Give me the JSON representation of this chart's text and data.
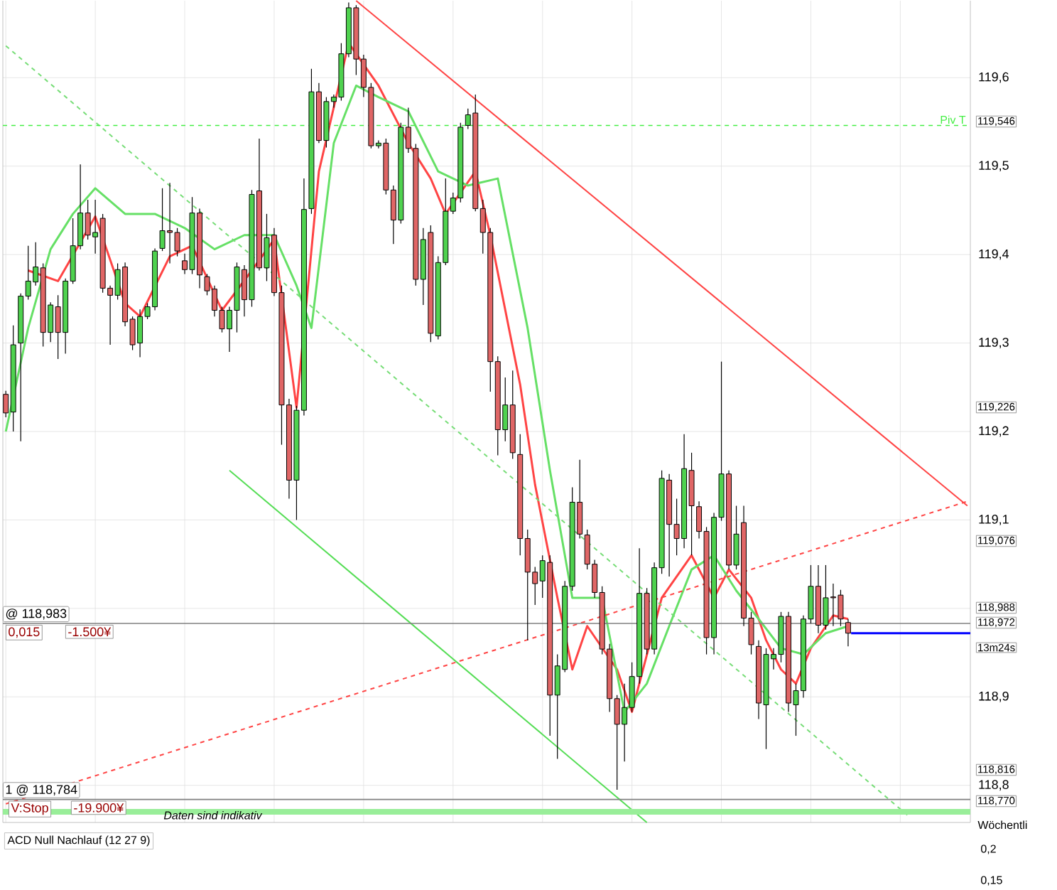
{
  "chart_data": [
    {
      "type": "candlestick",
      "categories": [
        null,
        null,
        null,
        null,
        null,
        null,
        null,
        null,
        null,
        null,
        null,
        null,
        null,
        null,
        null,
        null,
        null,
        null,
        null,
        null,
        null,
        null,
        null,
        null,
        null,
        null,
        null,
        null,
        null,
        null,
        null,
        null,
        null,
        null,
        null,
        null,
        null,
        null,
        null,
        null,
        null,
        null,
        null,
        null,
        null,
        null,
        null,
        null,
        null,
        null,
        null,
        null,
        null,
        null,
        null,
        null,
        null,
        null,
        null,
        null,
        null,
        null,
        null,
        null,
        null,
        null,
        null,
        null,
        null,
        null,
        null,
        null,
        null,
        null,
        null,
        null,
        null,
        null,
        null,
        null,
        null,
        null,
        null,
        null,
        null,
        null,
        null,
        null,
        null,
        null,
        null,
        null,
        null,
        null,
        null,
        null,
        null,
        null,
        null,
        null,
        null,
        null,
        null,
        null,
        null,
        null,
        null,
        null,
        null,
        null,
        null,
        null,
        null,
        null,
        null,
        null,
        null,
        null,
        null,
        null,
        null,
        null,
        null,
        null,
        null,
        null,
        null,
        null,
        null,
        null
      ],
      "ohlc": [
        [
          119.242,
          119.246,
          119.216,
          119.221
        ],
        [
          119.222,
          119.32,
          119.2,
          119.298
        ],
        [
          119.3,
          119.356,
          119.189,
          119.353
        ],
        [
          119.353,
          119.41,
          119.349,
          119.37
        ],
        [
          119.369,
          119.414,
          119.365,
          119.386
        ],
        [
          119.385,
          119.39,
          119.296,
          119.312
        ],
        [
          119.312,
          119.346,
          119.301,
          119.343
        ],
        [
          119.341,
          119.354,
          119.282,
          119.312
        ],
        [
          119.312,
          119.373,
          119.288,
          119.37
        ],
        [
          119.37,
          119.441,
          119.367,
          119.41
        ],
        [
          119.41,
          119.502,
          119.406,
          119.447
        ],
        [
          119.447,
          119.462,
          119.417,
          119.422
        ],
        [
          119.42,
          119.462,
          119.401,
          119.425
        ],
        [
          119.441,
          119.446,
          119.357,
          119.362
        ],
        [
          119.362,
          119.365,
          119.298,
          119.354
        ],
        [
          119.354,
          119.39,
          119.349,
          119.383
        ],
        [
          119.386,
          119.391,
          119.319,
          119.324
        ],
        [
          119.327,
          119.33,
          119.292,
          119.298
        ],
        [
          119.3,
          119.338,
          119.284,
          119.33
        ],
        [
          119.33,
          119.345,
          119.327,
          119.341
        ],
        [
          119.341,
          119.407,
          119.337,
          119.404
        ],
        [
          119.407,
          119.475,
          119.404,
          119.427
        ],
        [
          119.427,
          119.481,
          119.39,
          119.425
        ],
        [
          119.425,
          119.43,
          119.398,
          119.404
        ],
        [
          119.393,
          119.401,
          119.378,
          119.383
        ],
        [
          119.383,
          119.465,
          119.378,
          119.447
        ],
        [
          119.447,
          119.452,
          119.362,
          119.377
        ],
        [
          119.375,
          119.378,
          119.354,
          119.359
        ],
        [
          119.361,
          119.365,
          119.33,
          119.337
        ],
        [
          119.337,
          119.341,
          119.312,
          119.316
        ],
        [
          119.316,
          119.341,
          119.29,
          119.337
        ],
        [
          119.337,
          119.391,
          119.312,
          119.386
        ],
        [
          119.383,
          119.388,
          119.33,
          119.349
        ],
        [
          119.349,
          119.473,
          119.341,
          119.468
        ],
        [
          119.472,
          119.531,
          119.382,
          119.385
        ],
        [
          119.385,
          119.446,
          119.37,
          119.419
        ],
        [
          119.422,
          119.43,
          119.353,
          119.357
        ],
        [
          119.357,
          119.365,
          119.185,
          119.23
        ],
        [
          119.23,
          119.237,
          119.124,
          119.145
        ],
        [
          119.145,
          119.229,
          119.1,
          119.224
        ],
        [
          119.224,
          119.486,
          119.218,
          119.451
        ],
        [
          119.452,
          119.61,
          119.446,
          119.584
        ],
        [
          119.584,
          119.594,
          119.526,
          119.529
        ],
        [
          119.529,
          119.578,
          119.521,
          119.573
        ],
        [
          119.573,
          119.581,
          119.566,
          119.578
        ],
        [
          119.578,
          119.639,
          119.574,
          119.627
        ],
        [
          119.627,
          119.685,
          119.623,
          119.679
        ],
        [
          119.679,
          119.682,
          119.603,
          119.621
        ],
        [
          119.621,
          119.626,
          119.578,
          119.589
        ],
        [
          119.589,
          119.594,
          119.52,
          119.523
        ],
        [
          119.523,
          119.529,
          119.52,
          119.526
        ],
        [
          119.526,
          119.531,
          119.468,
          119.473
        ],
        [
          119.473,
          119.478,
          119.412,
          119.439
        ],
        [
          119.439,
          119.549,
          119.435,
          119.544
        ],
        [
          119.544,
          119.566,
          119.515,
          119.52
        ],
        [
          119.52,
          119.525,
          119.365,
          119.372
        ],
        [
          119.372,
          119.43,
          119.343,
          119.417
        ],
        [
          119.425,
          119.433,
          119.301,
          119.311
        ],
        [
          119.308,
          119.398,
          119.304,
          119.391
        ],
        [
          119.391,
          119.486,
          119.388,
          119.449
        ],
        [
          119.449,
          119.47,
          119.446,
          119.464
        ],
        [
          119.464,
          119.549,
          119.459,
          119.544
        ],
        [
          119.546,
          119.565,
          119.542,
          119.558
        ],
        [
          119.56,
          119.581,
          119.449,
          119.452
        ],
        [
          119.452,
          119.462,
          119.401,
          119.425
        ],
        [
          119.425,
          119.43,
          119.245,
          119.279
        ],
        [
          119.279,
          119.285,
          119.173,
          119.202
        ],
        [
          119.202,
          119.261,
          119.189,
          119.23
        ],
        [
          119.23,
          119.269,
          119.169,
          119.176
        ],
        [
          119.174,
          119.197,
          119.06,
          119.079
        ],
        [
          119.079,
          119.089,
          118.964,
          119.041
        ],
        [
          119.041,
          119.047,
          119.004,
          119.028
        ],
        [
          119.031,
          119.06,
          119.012,
          119.054
        ],
        [
          119.052,
          119.06,
          118.856,
          118.902
        ],
        [
          118.902,
          118.948,
          118.83,
          118.935
        ],
        [
          118.931,
          119.031,
          118.928,
          119.025
        ],
        [
          119.025,
          119.137,
          119.02,
          119.12
        ],
        [
          119.12,
          119.168,
          119.079,
          119.084
        ],
        [
          119.083,
          119.089,
          119.044,
          119.05
        ],
        [
          119.05,
          119.055,
          119.012,
          119.018
        ],
        [
          119.018,
          119.025,
          118.948,
          118.954
        ],
        [
          118.954,
          118.96,
          118.883,
          118.898
        ],
        [
          118.898,
          118.902,
          118.795,
          118.869
        ],
        [
          118.869,
          118.915,
          118.827,
          118.888
        ],
        [
          118.888,
          118.939,
          118.883,
          118.923
        ],
        [
          118.923,
          119.068,
          118.915,
          119.017
        ],
        [
          119.017,
          119.023,
          118.948,
          118.954
        ],
        [
          118.954,
          119.052,
          118.948,
          119.046
        ],
        [
          119.046,
          119.156,
          119.039,
          119.147
        ],
        [
          119.145,
          119.152,
          119.036,
          119.095
        ],
        [
          119.095,
          119.124,
          119.06,
          119.079
        ],
        [
          119.079,
          119.197,
          119.068,
          119.158
        ],
        [
          119.156,
          119.176,
          119.06,
          119.116
        ],
        [
          119.115,
          119.121,
          119.079,
          119.087
        ],
        [
          119.087,
          119.092,
          118.948,
          118.967
        ],
        [
          118.967,
          119.108,
          118.948,
          119.103
        ],
        [
          119.103,
          119.279,
          119.099,
          119.152
        ],
        [
          119.152,
          119.156,
          119.044,
          119.049
        ],
        [
          119.049,
          119.116,
          119.044,
          119.084
        ],
        [
          119.097,
          119.116,
          118.98,
          118.989
        ],
        [
          118.989,
          118.996,
          118.948,
          118.959
        ],
        [
          118.957,
          118.964,
          118.875,
          118.893
        ],
        [
          118.891,
          118.955,
          118.841,
          118.948
        ],
        [
          118.943,
          118.955,
          118.931,
          118.948
        ],
        [
          118.948,
          118.996,
          118.939,
          118.991
        ],
        [
          118.991,
          118.996,
          118.883,
          118.893
        ],
        [
          118.891,
          118.915,
          118.856,
          118.907
        ],
        [
          118.907,
          118.992,
          118.899,
          118.988
        ],
        [
          118.988,
          119.049,
          118.983,
          119.025
        ],
        [
          119.025,
          119.049,
          118.972,
          118.981
        ],
        [
          118.981,
          119.049,
          118.976,
          119.012
        ],
        [
          119.013,
          119.028,
          118.98,
          119.012
        ],
        [
          119.015,
          119.021,
          118.98,
          118.988
        ],
        [
          118.984,
          118.988,
          118.957,
          118.972
        ],
        null,
        null,
        null,
        null,
        null,
        null,
        null,
        null,
        null,
        null,
        null,
        null,
        null,
        null,
        null,
        null
      ],
      "colors": [
        "#e06666",
        "#4fd24f",
        "#4fd24f",
        "#4fd24f",
        "#4fd24f",
        "#e06666",
        "#4fd24f",
        "#e06666",
        "#4fd24f",
        "#4fd24f",
        "#4fd24f",
        "#e06666",
        "#4fd24f",
        "#e06666",
        "#e06666",
        "#4fd24f",
        "#e06666",
        "#e06666",
        "#4fd24f",
        "#4fd24f",
        "#4fd24f",
        "#4fd24f",
        "#e06666",
        "#e06666",
        "#e06666",
        "#4fd24f",
        "#e06666",
        "#e06666",
        "#e06666",
        "#e06666",
        "#4fd24f",
        "#4fd24f",
        "#e06666",
        "#4fd24f",
        "#e06666",
        "#4fd24f",
        "#e06666",
        "#e06666",
        "#e06666",
        "#4fd24f",
        "#4fd24f",
        "#4fd24f",
        "#e06666",
        "#4fd24f",
        "#4fd24f",
        "#4fd24f",
        "#4fd24f",
        "#e06666",
        "#e06666",
        "#e06666",
        "#4fd24f",
        "#e06666",
        "#e06666",
        "#4fd24f",
        "#e06666",
        "#e06666",
        "#4fd24f",
        "#e06666",
        "#4fd24f",
        "#4fd24f",
        "#4fd24f",
        "#4fd24f",
        "#4fd24f",
        "#e06666",
        "#e06666",
        "#e06666",
        "#e06666",
        "#4fd24f",
        "#e06666",
        "#e06666",
        "#e06666",
        "#e06666",
        "#4fd24f",
        "#e06666",
        "#4fd24f",
        "#4fd24f",
        "#4fd24f",
        "#e06666",
        "#e06666",
        "#e06666",
        "#e06666",
        "#e06666",
        "#e06666",
        "#4fd24f",
        "#4fd24f",
        "#4fd24f",
        "#e06666",
        "#4fd24f",
        "#4fd24f",
        "#e06666",
        "#e06666",
        "#4fd24f",
        "#e06666",
        "#e06666",
        "#e06666",
        "#4fd24f",
        "#4fd24f",
        "#e06666",
        "#4fd24f",
        "#e06666",
        "#e06666",
        "#e06666",
        "#4fd24f",
        "#4fd24f",
        "#4fd24f",
        "#e06666",
        "#4fd24f",
        "#4fd24f",
        "#4fd24f",
        "#e06666",
        "#4fd24f",
        "#e06666",
        "#e06666",
        "#e06666",
        null,
        null,
        null,
        null,
        null,
        null,
        null,
        null,
        null,
        null,
        null,
        null,
        null,
        null,
        null,
        null
      ],
      "series": [
        {
          "type": "line",
          "color": "#ff4444",
          "values": [
            null,
            null,
            null,
            119.382,
            null,
            null,
            null,
            119.37,
            null,
            null,
            null,
            null,
            119.443,
            null,
            null,
            null,
            119.345,
            null,
            119.33,
            null,
            null,
            null,
            119.398,
            null,
            null,
            119.41,
            null,
            null,
            null,
            119.337,
            null,
            null,
            null,
            119.382,
            null,
            null,
            119.417,
            null,
            null,
            119.227,
            null,
            null,
            119.494,
            null,
            null,
            null,
            119.639,
            null,
            null,
            null,
            119.591,
            null,
            null,
            null,
            119.526,
            null,
            null,
            119.486,
            null,
            119.446,
            null,
            null,
            null,
            119.494,
            null,
            119.422,
            null,
            null,
            null,
            119.253,
            null,
            119.14,
            null,
            null,
            119.012,
            null,
            118.931,
            null,
            118.98,
            null,
            null,
            null,
            118.931,
            null,
            118.883,
            null,
            null,
            null,
            119.012,
            null,
            null,
            null,
            119.06,
            null,
            null,
            119.012,
            null,
            119.044,
            null,
            null,
            119.012,
            null,
            118.964,
            null,
            118.931,
            null,
            118.915,
            null,
            118.955,
            null,
            null,
            118.992,
            null,
            118.988,
            null,
            null,
            null,
            null,
            null,
            null,
            null,
            null,
            null,
            null,
            null,
            null,
            null,
            null,
            null,
            null
          ]
        },
        {
          "type": "line",
          "color": "#66e066",
          "values": [
            119.2,
            null,
            null,
            119.317,
            null,
            null,
            119.406,
            null,
            null,
            119.446,
            null,
            null,
            119.475,
            null,
            null,
            null,
            119.446,
            null,
            null,
            null,
            119.446,
            null,
            null,
            null,
            119.43,
            null,
            null,
            null,
            119.406,
            null,
            null,
            null,
            119.422,
            null,
            null,
            null,
            119.422,
            null,
            null,
            119.365,
            null,
            119.317,
            null,
            null,
            119.526,
            null,
            null,
            119.591,
            null,
            null,
            119.578,
            null,
            null,
            null,
            119.562,
            null,
            null,
            null,
            119.494,
            null,
            null,
            null,
            119.478,
            null,
            null,
            null,
            119.486,
            null,
            null,
            null,
            119.317,
            null,
            null,
            119.156,
            null,
            null,
            119.012,
            null,
            null,
            null,
            119.012,
            null,
            null,
            118.883,
            null,
            null,
            118.915,
            null,
            null,
            118.98,
            null,
            null,
            119.044,
            null,
            null,
            119.06,
            null,
            null,
            119.02,
            null,
            null,
            118.988,
            null,
            null,
            118.955,
            null,
            null,
            118.948,
            null,
            null,
            118.972,
            null,
            null,
            118.98,
            null,
            null,
            null,
            null,
            null,
            null,
            null,
            null,
            null,
            null,
            null,
            null,
            null,
            null,
            null,
            null
          ]
        },
        {
          "type": "line",
          "color": "#ff4444",
          "line_style": "solid",
          "values": [
            null,
            null,
            null,
            null,
            null,
            null,
            null,
            null,
            null,
            null,
            null,
            null,
            null,
            null,
            null,
            null,
            null,
            null,
            null,
            null,
            null,
            null,
            null,
            null,
            null,
            null,
            null,
            null,
            null,
            null,
            null,
            null,
            null,
            null,
            null,
            null,
            null,
            null,
            null,
            null,
            null,
            null,
            null,
            null,
            null,
            null,
            null,
            119.687,
            null,
            null,
            null,
            null,
            null,
            null,
            null,
            null,
            null,
            null,
            null,
            null,
            null,
            null,
            null,
            null,
            null,
            null,
            null,
            null,
            null,
            null,
            null,
            null,
            null,
            null,
            null,
            null,
            null,
            null,
            null,
            null,
            null,
            null,
            null,
            null,
            null,
            null,
            null,
            null,
            null,
            null,
            null,
            null,
            null,
            null,
            null,
            null,
            null,
            null,
            null,
            null,
            null,
            null,
            null,
            null,
            null,
            null,
            null,
            null,
            null,
            null,
            null,
            null,
            null,
            null,
            null,
            null,
            null,
            null,
            null,
            null,
            null,
            null,
            null,
            null,
            null,
            null,
            null,
            null,
            null,
            119.116
          ]
        },
        {
          "type": "line",
          "color": "#ff4444",
          "line_style": "dashed",
          "values": [
            118.779,
            null,
            null,
            null,
            null,
            null,
            null,
            null,
            null,
            null,
            null,
            null,
            null,
            null,
            null,
            null,
            null,
            null,
            null,
            null,
            null,
            null,
            null,
            null,
            null,
            null,
            null,
            null,
            null,
            null,
            null,
            null,
            null,
            null,
            null,
            null,
            null,
            null,
            null,
            null,
            null,
            null,
            null,
            null,
            null,
            null,
            null,
            null,
            null,
            null,
            null,
            null,
            null,
            null,
            null,
            null,
            null,
            null,
            null,
            null,
            null,
            null,
            null,
            null,
            null,
            null,
            null,
            null,
            null,
            null,
            null,
            null,
            null,
            null,
            null,
            null,
            null,
            null,
            null,
            null,
            null,
            null,
            null,
            null,
            null,
            null,
            null,
            null,
            null,
            null,
            null,
            null,
            null,
            null,
            null,
            null,
            null,
            null,
            null,
            null,
            null,
            null,
            null,
            null,
            null,
            null,
            null,
            null,
            null,
            null,
            null,
            null,
            null,
            null,
            null,
            null,
            null,
            null,
            null,
            null,
            null,
            null,
            null,
            null,
            null,
            null,
            null,
            null,
            null,
            119.121
          ]
        },
        {
          "type": "line",
          "color": "#55dd55",
          "line_style": "solid",
          "values": [
            null,
            null,
            null,
            null,
            null,
            null,
            null,
            null,
            null,
            null,
            null,
            null,
            null,
            null,
            null,
            null,
            null,
            null,
            null,
            null,
            null,
            null,
            null,
            null,
            null,
            null,
            null,
            null,
            null,
            null,
            119.156,
            null,
            null,
            null,
            null,
            null,
            null,
            null,
            null,
            null,
            null,
            null,
            null,
            null,
            null,
            null,
            null,
            null,
            null,
            null,
            null,
            null,
            null,
            null,
            null,
            null,
            null,
            null,
            null,
            null,
            null,
            null,
            null,
            null,
            null,
            null,
            null,
            null,
            null,
            null,
            null,
            null,
            null,
            null,
            null,
            null,
            null,
            null,
            null,
            null,
            null,
            null,
            null,
            null,
            null,
            null,
            118.758,
            null,
            null,
            null,
            null,
            null,
            null,
            null,
            null,
            null,
            null,
            null,
            null,
            null,
            null,
            null,
            null,
            null,
            null,
            null,
            null,
            null,
            null,
            null,
            null,
            null,
            null,
            null,
            null,
            null,
            null,
            null,
            null,
            null,
            null,
            null,
            null,
            null,
            null,
            null,
            null,
            null,
            null,
            null
          ]
        },
        {
          "type": "line",
          "color": "#77dd77",
          "line_style": "dashed",
          "values": [
            119.636,
            null,
            null,
            null,
            null,
            null,
            null,
            null,
            null,
            null,
            null,
            null,
            null,
            null,
            null,
            null,
            null,
            null,
            null,
            null,
            null,
            null,
            null,
            null,
            null,
            null,
            null,
            null,
            null,
            null,
            null,
            null,
            null,
            null,
            null,
            null,
            null,
            null,
            null,
            null,
            null,
            null,
            null,
            null,
            null,
            null,
            null,
            null,
            null,
            null,
            null,
            null,
            null,
            null,
            null,
            null,
            null,
            null,
            null,
            null,
            null,
            null,
            null,
            null,
            null,
            null,
            null,
            null,
            null,
            null,
            null,
            null,
            null,
            null,
            null,
            null,
            null,
            null,
            null,
            null,
            null,
            null,
            null,
            null,
            null,
            null,
            null,
            null,
            null,
            null,
            null,
            null,
            null,
            null,
            null,
            null,
            null,
            null,
            null,
            null,
            null,
            null,
            null,
            null,
            null,
            null,
            null,
            null,
            null,
            null,
            null,
            null,
            null,
            null,
            null,
            null,
            null,
            null,
            null,
            null,
            null,
            118.766,
            null,
            null,
            null,
            null,
            null,
            null,
            null,
            null
          ]
        }
      ],
      "ylim": [
        118.758,
        119.687
      ],
      "yticks": [
        {
          "value": 119.6,
          "label": "119,6"
        },
        {
          "value": 119.5,
          "label": "119,5"
        },
        {
          "value": 119.4,
          "label": "119,4"
        },
        {
          "value": 119.3,
          "label": "119,3"
        },
        {
          "value": 119.2,
          "label": "119,2"
        },
        {
          "value": 119.1,
          "label": "119,1"
        },
        {
          "value": 119.0,
          "label": null
        },
        {
          "value": 118.9,
          "label": "118,9"
        },
        {
          "value": 118.8,
          "label": "118,8"
        }
      ],
      "grid": true,
      "tick_labels": "y",
      "ref_lines": [
        {
          "axis": "y",
          "value": 119.546,
          "label": "Piv T",
          "color": "#44ee44",
          "line_style": "dashed"
        },
        {
          "axis": "y",
          "value": 118.983,
          "label": "@ 118,983",
          "color": "#808080"
        },
        {
          "axis": "y",
          "value": 118.784,
          "label": "1 @ 118,784",
          "color": "#808080"
        },
        {
          "axis": "y",
          "value": 118.77,
          "label": "Wöchentli",
          "color": "#99ee99"
        },
        {
          "axis": "y",
          "value": 118.972,
          "color": "#0000ff"
        }
      ],
      "annotations": [
        "119,546",
        "119,226",
        "119,076",
        "118,988",
        "118,972",
        "13m24s",
        "118,816",
        "118,770",
        "0,015",
        "-1.500¥",
        "V:Stop",
        "-19.900¥",
        "Daten sind indikativ"
      ]
    },
    {
      "type": "other",
      "title": "ACD Null Nachlauf (12 27 9)",
      "annotations": [
        "0,2",
        "0,15"
      ]
    }
  ]
}
